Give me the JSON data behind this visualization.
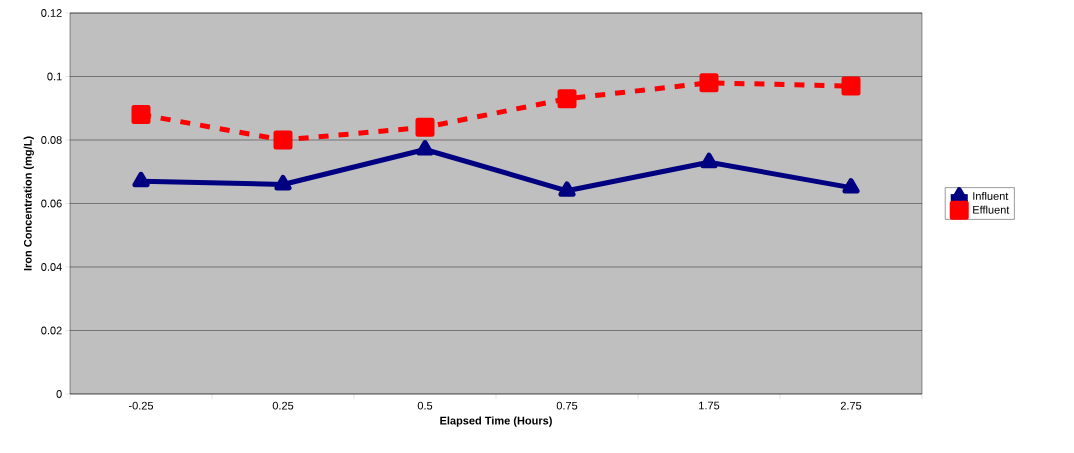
{
  "chart_data": {
    "type": "line",
    "xlabel": "Elapsed Time (Hours)",
    "ylabel": "Iron Concentration (mg/L)",
    "categories": [
      "-0.25",
      "0.25",
      "0.5",
      "0.75",
      "1.75",
      "2.75"
    ],
    "series": [
      {
        "name": "Influent",
        "color": "#000080",
        "marker": "triangle",
        "line_style": "solid",
        "values": [
          0.067,
          0.066,
          0.077,
          0.064,
          0.073,
          0.065
        ]
      },
      {
        "name": "Effluent",
        "color": "#ff0000",
        "marker": "square",
        "line_style": "dashed",
        "values": [
          0.088,
          0.08,
          0.084,
          0.093,
          0.098,
          0.097
        ]
      }
    ],
    "ylim": [
      0,
      0.12
    ],
    "yticks": [
      0,
      0.02,
      0.04,
      0.06,
      0.08,
      0.1,
      0.12
    ],
    "grid": "y",
    "legend": "right"
  }
}
